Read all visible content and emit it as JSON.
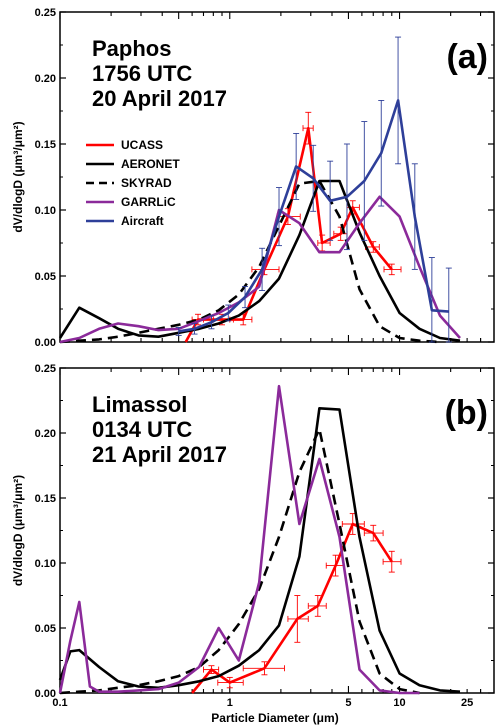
{
  "chart_data": [
    {
      "type": "line",
      "panel_label": "(a)",
      "title_lines": [
        "Paphos",
        "1756 UTC",
        "20 April 2017"
      ],
      "ylabel": "dV/dlogD (μm³/μm²)",
      "xscale": "log",
      "xlim": [
        0.1,
        36
      ],
      "ylim": [
        0,
        0.25
      ],
      "yticks": [
        0.0,
        0.05,
        0.1,
        0.15,
        0.2,
        0.25
      ],
      "ytick_labels": [
        "0.00",
        "0.05",
        "0.10",
        "0.15",
        "0.20",
        "0.25"
      ],
      "legend_position": "upper-left",
      "series": [
        {
          "name": "UCASS",
          "color": "#ff0000",
          "dash": "solid",
          "x": [
            0.55,
            0.65,
            0.9,
            1.2,
            1.6,
            2.2,
            2.9,
            3.5,
            4.5,
            5.3,
            7.0,
            9.0
          ],
          "y": [
            0.0,
            0.017,
            0.017,
            0.017,
            0.055,
            0.095,
            0.162,
            0.075,
            0.082,
            0.102,
            0.072,
            0.055
          ],
          "xerr_low": [
            0,
            0.6,
            0.8,
            1.05,
            1.35,
            1.9,
            2.7,
            3.3,
            4.1,
            4.9,
            6.3,
            8.1
          ],
          "xerr_high": [
            0,
            0.7,
            1.0,
            1.35,
            1.95,
            2.6,
            3.1,
            3.9,
            4.9,
            5.8,
            7.6,
            10.2
          ],
          "yerr": [
            0,
            0.004,
            0.004,
            0.004,
            0.004,
            0.006,
            0.012,
            0.006,
            0.005,
            0.005,
            0.004,
            0.004
          ]
        },
        {
          "name": "AERONET",
          "color": "#000000",
          "dash": "solid",
          "x": [
            0.1,
            0.13,
            0.17,
            0.22,
            0.29,
            0.38,
            0.5,
            0.66,
            0.86,
            1.13,
            1.49,
            1.95,
            2.57,
            3.37,
            4.43,
            5.81,
            7.63,
            10.0,
            13.1,
            17.3,
            22.7
          ],
          "y": [
            0.003,
            0.026,
            0.018,
            0.01,
            0.005,
            0.004,
            0.007,
            0.01,
            0.014,
            0.02,
            0.031,
            0.048,
            0.081,
            0.122,
            0.122,
            0.083,
            0.05,
            0.022,
            0.01,
            0.003,
            0.001
          ]
        },
        {
          "name": "SKYRAD",
          "color": "#000000",
          "dash": "dashed",
          "x": [
            0.1,
            0.13,
            0.17,
            0.22,
            0.29,
            0.38,
            0.5,
            0.66,
            0.86,
            1.13,
            1.49,
            1.95,
            2.57,
            3.37,
            4.43,
            5.81,
            7.63,
            10.0,
            13.1,
            17.3
          ],
          "y": [
            0.0,
            0.001,
            0.002,
            0.004,
            0.007,
            0.01,
            0.013,
            0.017,
            0.024,
            0.036,
            0.057,
            0.088,
            0.12,
            0.122,
            0.095,
            0.04,
            0.012,
            0.003,
            0.001,
            0.0
          ]
        },
        {
          "name": "GARRLiC",
          "color": "#8b2a9a",
          "dash": "solid",
          "x": [
            0.1,
            0.13,
            0.17,
            0.22,
            0.29,
            0.38,
            0.5,
            0.66,
            0.86,
            1.13,
            1.49,
            1.95,
            2.57,
            3.37,
            4.43,
            5.81,
            7.63,
            10.0,
            13.1,
            17.3,
            22.7
          ],
          "y": [
            0.0,
            0.003,
            0.01,
            0.014,
            0.012,
            0.009,
            0.01,
            0.016,
            0.022,
            0.03,
            0.042,
            0.1,
            0.09,
            0.068,
            0.068,
            0.09,
            0.11,
            0.095,
            0.057,
            0.02,
            0.003
          ]
        },
        {
          "name": "Aircraft",
          "color": "#2e3f99",
          "dash": "solid",
          "x": [
            0.5,
            0.62,
            0.78,
            0.98,
            1.23,
            1.55,
            1.95,
            2.46,
            3.1,
            3.9,
            4.9,
            6.2,
            7.8,
            9.8,
            12.3,
            15.5,
            19.5
          ],
          "y": [
            0.008,
            0.01,
            0.015,
            0.022,
            0.034,
            0.055,
            0.095,
            0.133,
            0.124,
            0.107,
            0.11,
            0.122,
            0.143,
            0.183,
            0.095,
            0.024,
            0.023
          ],
          "yerr": [
            0.003,
            0.004,
            0.005,
            0.006,
            0.008,
            0.016,
            0.022,
            0.025,
            0.025,
            0.03,
            0.04,
            0.045,
            0.04,
            0.048,
            0.04,
            0.04,
            0.033
          ]
        }
      ]
    },
    {
      "type": "line",
      "panel_label": "(b)",
      "title_lines": [
        "Limassol",
        "0134 UTC",
        "21 April 2017"
      ],
      "ylabel": "dV/dlogD (μm³/μm²)",
      "xlabel": "Particle Diameter (μm)",
      "xscale": "log",
      "xlim": [
        0.1,
        36
      ],
      "xticks": [
        0.1,
        1,
        5,
        10,
        25
      ],
      "xtick_labels": [
        "0.1",
        "1",
        "5",
        "10",
        "25"
      ],
      "ylim": [
        0,
        0.25
      ],
      "yticks": [
        0.0,
        0.05,
        0.1,
        0.15,
        0.2,
        0.25
      ],
      "ytick_labels": [
        "0.00",
        "0.05",
        "0.10",
        "0.15",
        "0.20",
        "0.25"
      ],
      "series": [
        {
          "name": "UCASS",
          "color": "#ff0000",
          "dash": "solid",
          "x": [
            0.6,
            0.78,
            1.0,
            1.6,
            2.5,
            3.3,
            4.2,
            5.3,
            7.0,
            9.0
          ],
          "y": [
            0.0,
            0.018,
            0.008,
            0.019,
            0.057,
            0.067,
            0.098,
            0.13,
            0.123,
            0.101
          ],
          "xerr_low": [
            0,
            0.7,
            0.85,
            1.2,
            2.2,
            2.9,
            3.7,
            4.6,
            6.2,
            8.0
          ],
          "xerr_high": [
            0,
            0.86,
            1.2,
            2.1,
            2.9,
            3.7,
            4.7,
            6.2,
            8.0,
            10.2
          ],
          "yerr": [
            0,
            0.003,
            0.004,
            0.005,
            0.018,
            0.008,
            0.008,
            0.008,
            0.006,
            0.008
          ]
        },
        {
          "name": "AERONET",
          "color": "#000000",
          "dash": "solid",
          "x": [
            0.1,
            0.115,
            0.13,
            0.17,
            0.22,
            0.29,
            0.38,
            0.5,
            0.66,
            0.86,
            1.13,
            1.49,
            1.95,
            2.57,
            3.37,
            4.43,
            5.81,
            7.63,
            10.0,
            13.1,
            17.3,
            22.7
          ],
          "y": [
            0.01,
            0.032,
            0.033,
            0.02,
            0.009,
            0.005,
            0.004,
            0.006,
            0.009,
            0.013,
            0.021,
            0.033,
            0.052,
            0.105,
            0.219,
            0.218,
            0.12,
            0.048,
            0.015,
            0.006,
            0.002,
            0.001
          ]
        },
        {
          "name": "SKYRAD",
          "color": "#000000",
          "dash": "dashed",
          "x": [
            0.1,
            0.13,
            0.17,
            0.22,
            0.29,
            0.38,
            0.5,
            0.66,
            0.86,
            1.13,
            1.49,
            1.95,
            2.57,
            3.37,
            4.43,
            5.81,
            7.63,
            10.0,
            13.1
          ],
          "y": [
            0.0,
            0.001,
            0.002,
            0.004,
            0.006,
            0.009,
            0.013,
            0.02,
            0.033,
            0.053,
            0.08,
            0.12,
            0.17,
            0.203,
            0.13,
            0.055,
            0.015,
            0.003,
            0.0
          ]
        },
        {
          "name": "GARRLiC",
          "color": "#8b2a9a",
          "dash": "solid",
          "x": [
            0.1,
            0.115,
            0.13,
            0.15,
            0.17,
            0.22,
            0.29,
            0.38,
            0.5,
            0.66,
            0.86,
            1.13,
            1.49,
            1.95,
            2.57,
            3.37,
            4.43,
            5.81,
            7.63,
            10.0,
            13.1
          ],
          "y": [
            0.0,
            0.04,
            0.07,
            0.005,
            0.001,
            0.001,
            0.002,
            0.003,
            0.008,
            0.02,
            0.05,
            0.025,
            0.085,
            0.236,
            0.13,
            0.18,
            0.12,
            0.018,
            0.002,
            0.0,
            0.0
          ]
        }
      ]
    }
  ]
}
